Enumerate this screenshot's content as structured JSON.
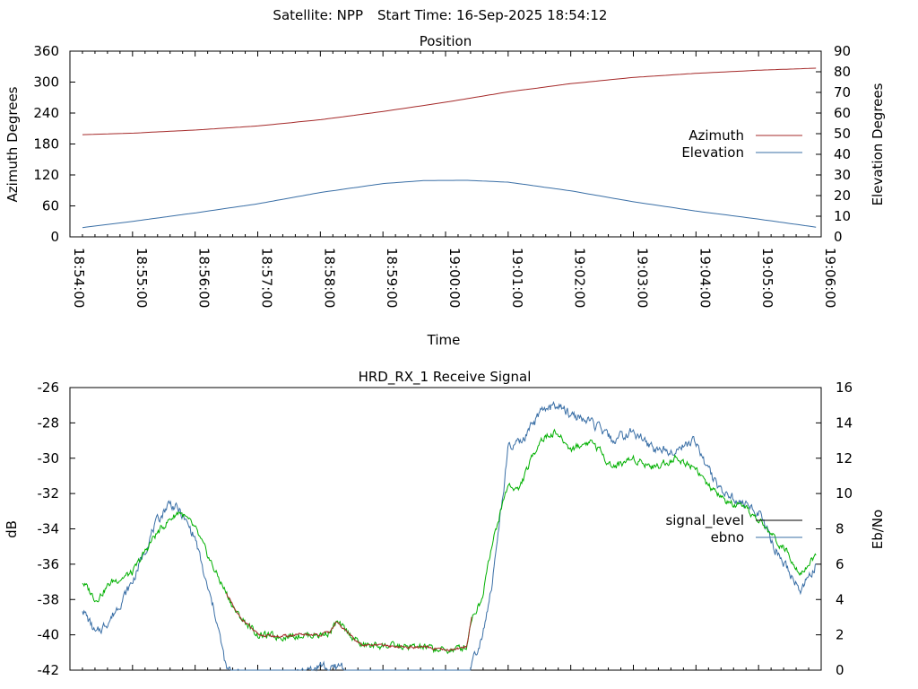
{
  "header": {
    "satellite_label": "Satellite: NPP",
    "start_time_label": "Start Time: 16-Sep-2025 18:54:12"
  },
  "chart_data": [
    {
      "id": "position",
      "type": "line",
      "title": "Position",
      "xlabel": "Time",
      "ylabel": "Azimuth Degrees",
      "y2label": "Elevation Degrees",
      "x_range": [
        "18:54:00",
        "19:06:00"
      ],
      "x_ticks": [
        "18:54:00",
        "18:55:00",
        "18:56:00",
        "18:57:00",
        "18:58:00",
        "18:59:00",
        "19:00:00",
        "19:01:00",
        "19:02:00",
        "19:03:00",
        "19:04:00",
        "19:05:00",
        "19:06:00"
      ],
      "ylim": [
        0,
        360
      ],
      "y_ticks": [
        "0",
        "60",
        "120",
        "180",
        "240",
        "300",
        "360"
      ],
      "y2lim": [
        0,
        90
      ],
      "y2_ticks": [
        "0",
        "10",
        "20",
        "30",
        "40",
        "50",
        "60",
        "70",
        "80",
        "90"
      ],
      "legend_position": "right",
      "series": [
        {
          "name": "Azimuth",
          "axis": "y",
          "color": "#a52a2a",
          "x": [
            "18:54:12",
            "18:55:00",
            "18:56:00",
            "18:57:00",
            "18:58:00",
            "18:59:00",
            "19:00:00",
            "19:01:00",
            "19:02:00",
            "19:03:00",
            "19:04:00",
            "19:05:00",
            "19:05:55"
          ],
          "values": [
            198,
            201,
            207,
            215,
            227,
            243,
            261,
            281,
            297,
            309,
            317,
            323,
            327
          ]
        },
        {
          "name": "Elevation",
          "axis": "y2",
          "color": "#3a6fa6",
          "x": [
            "18:54:12",
            "18:55:00",
            "18:56:00",
            "18:57:00",
            "18:58:00",
            "18:59:00",
            "18:59:40",
            "19:00:20",
            "19:01:00",
            "19:02:00",
            "19:03:00",
            "19:04:00",
            "19:05:00",
            "19:05:55"
          ],
          "values": [
            4.5,
            7.5,
            11.6,
            16.0,
            21.5,
            25.8,
            27.3,
            27.4,
            26.5,
            22.3,
            17.0,
            12.5,
            8.6,
            4.7
          ]
        }
      ]
    },
    {
      "id": "receive-signal",
      "type": "line",
      "title": "HRD_RX_1 Receive Signal",
      "ylabel": "dB",
      "y2label": "Eb/No",
      "ylim": [
        -42,
        -26
      ],
      "y_ticks": [
        "-42",
        "-40",
        "-38",
        "-36",
        "-34",
        "-32",
        "-30",
        "-28",
        "-26"
      ],
      "y2lim": [
        0,
        16
      ],
      "y2_ticks": [
        "0",
        "2",
        "4",
        "6",
        "8",
        "10",
        "12",
        "14",
        "16"
      ],
      "x_range": [
        "18:54:00",
        "19:06:00"
      ],
      "legend_position": "right",
      "series": [
        {
          "name": "signal_level",
          "axis": "y",
          "color": "#00b000",
          "alt_color": "#a52a2a",
          "x": [
            "18:54:12",
            "18:54:25",
            "18:54:40",
            "18:55:00",
            "18:55:20",
            "18:55:35",
            "18:55:45",
            "18:56:00",
            "18:56:20",
            "18:56:40",
            "18:57:00",
            "18:57:20",
            "18:57:40",
            "18:58:00",
            "18:58:10",
            "18:58:15",
            "18:58:25",
            "18:58:40",
            "18:59:00",
            "18:59:20",
            "18:59:40",
            "19:00:00",
            "19:00:20",
            "19:00:25",
            "19:00:35",
            "19:00:40",
            "19:00:55",
            "19:01:00",
            "19:01:10",
            "19:01:30",
            "19:01:45",
            "19:02:00",
            "19:02:20",
            "19:02:40",
            "19:03:00",
            "19:03:20",
            "19:03:40",
            "19:04:00",
            "19:04:10",
            "19:04:20",
            "19:04:30",
            "19:04:50",
            "19:05:00",
            "19:05:15",
            "19:05:30",
            "19:05:40",
            "19:05:55"
          ],
          "values": [
            -37.0,
            -38.0,
            -37.0,
            -36.5,
            -34.5,
            -33.5,
            -33.0,
            -34.0,
            -36.5,
            -38.8,
            -40.0,
            -40.1,
            -40.0,
            -40.0,
            -39.8,
            -39.3,
            -39.8,
            -40.6,
            -40.6,
            -40.7,
            -40.7,
            -40.9,
            -40.7,
            -39.0,
            -38.0,
            -36.0,
            -32.5,
            -31.5,
            -31.8,
            -29.0,
            -28.5,
            -29.5,
            -29.0,
            -30.5,
            -30.0,
            -30.5,
            -30.0,
            -30.5,
            -31.5,
            -32.0,
            -32.5,
            -33.0,
            -33.5,
            -34.5,
            -35.5,
            -36.5,
            -35.5
          ]
        },
        {
          "name": "ebno",
          "axis": "y2",
          "color": "#3a6fa6",
          "x": [
            "18:54:12",
            "18:54:25",
            "18:54:40",
            "18:55:00",
            "18:55:20",
            "18:55:35",
            "18:55:45",
            "18:56:00",
            "18:56:10",
            "18:56:20",
            "18:56:30",
            "18:57:00",
            "18:57:30",
            "18:58:00",
            "18:58:10",
            "18:58:20",
            "18:58:30",
            "18:59:00",
            "18:59:30",
            "19:00:00",
            "19:00:20",
            "19:00:35",
            "19:00:45",
            "19:00:55",
            "19:01:00",
            "19:01:15",
            "19:01:30",
            "19:01:45",
            "19:02:00",
            "19:02:20",
            "19:02:40",
            "19:03:00",
            "19:03:20",
            "19:03:40",
            "19:04:00",
            "19:04:10",
            "19:04:20",
            "19:04:40",
            "19:05:00",
            "19:05:15",
            "19:05:30",
            "19:05:40",
            "19:05:55"
          ],
          "values": [
            3.5,
            2.0,
            3.0,
            5.0,
            8.0,
            9.5,
            9.0,
            7.5,
            5.0,
            3.0,
            0.0,
            -0.5,
            -0.5,
            0.3,
            0.0,
            0.3,
            -0.5,
            -0.5,
            -0.5,
            -0.5,
            -0.5,
            2.0,
            5.0,
            10.0,
            12.5,
            13.0,
            14.5,
            15.0,
            14.5,
            14.0,
            13.0,
            13.5,
            12.5,
            12.5,
            13.0,
            11.5,
            10.5,
            9.5,
            9.0,
            7.0,
            5.5,
            4.5,
            6.0
          ]
        }
      ]
    }
  ]
}
